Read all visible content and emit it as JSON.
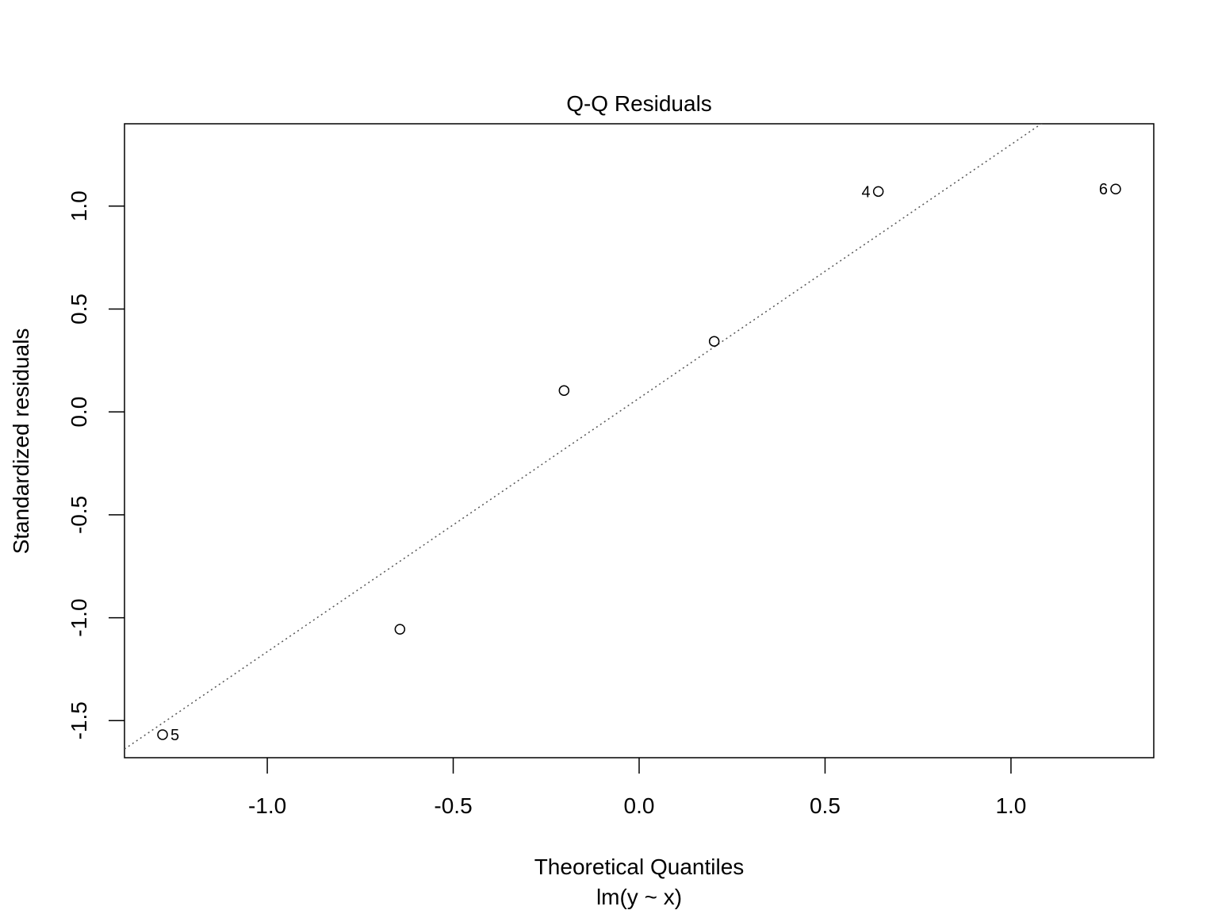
{
  "chart_data": {
    "type": "scatter",
    "title": "Q-Q Residuals",
    "xlabel": "Theoretical Quantiles",
    "subtitle": "lm(y ~ x)",
    "ylabel": "Standardized residuals",
    "xlim": [
      -1.384,
      1.384
    ],
    "ylim": [
      -1.68,
      1.4
    ],
    "xticks": [
      -1.0,
      -0.5,
      0.0,
      0.5,
      1.0
    ],
    "xtick_labels": [
      "-1.0",
      "-0.5",
      "0.0",
      "0.5",
      "1.0"
    ],
    "yticks": [
      -1.5,
      -1.0,
      -0.5,
      0.0,
      0.5,
      1.0
    ],
    "ytick_labels": [
      "-1.5",
      "-1.0",
      "-0.5",
      "0.0",
      "0.5",
      "1.0"
    ],
    "grid": false,
    "points": [
      {
        "x": -1.2816,
        "y": -1.568,
        "label": "5",
        "label_side": "right"
      },
      {
        "x": -0.6433,
        "y": -1.056,
        "label": ""
      },
      {
        "x": -0.2019,
        "y": 0.104,
        "label": ""
      },
      {
        "x": 0.2019,
        "y": 0.343,
        "label": ""
      },
      {
        "x": 0.6433,
        "y": 1.071,
        "label": "4",
        "label_side": "left"
      },
      {
        "x": 1.2816,
        "y": 1.083,
        "label": "6",
        "label_side": "left"
      }
    ],
    "reference_line": {
      "intercept": 0.067,
      "slope": 1.232,
      "style": "dotted",
      "color": "#555555"
    }
  }
}
